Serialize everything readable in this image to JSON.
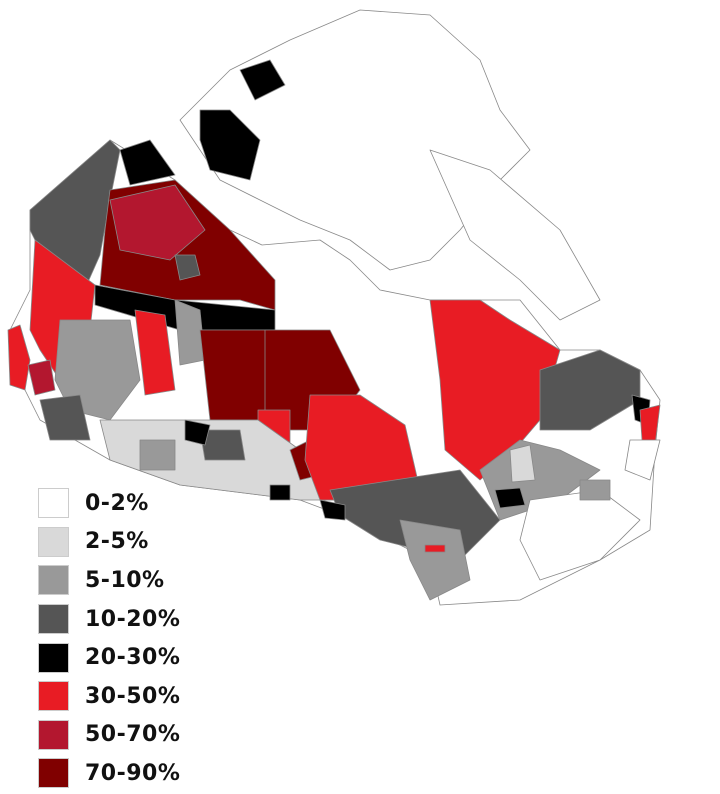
{
  "legend": [
    {
      "label": "0-2%",
      "color": "#ffffff"
    },
    {
      "label": "2-5%",
      "color": "#d9d9d9"
    },
    {
      "label": "5-10%",
      "color": "#999999"
    },
    {
      "label": "10-20%",
      "color": "#555555"
    },
    {
      "label": "20-30%",
      "color": "#000000"
    },
    {
      "label": "30-50%",
      "color": "#e81c24"
    },
    {
      "label": "50-70%",
      "color": "#b3172f"
    },
    {
      "label": "70-90%",
      "color": "#800000"
    }
  ]
}
